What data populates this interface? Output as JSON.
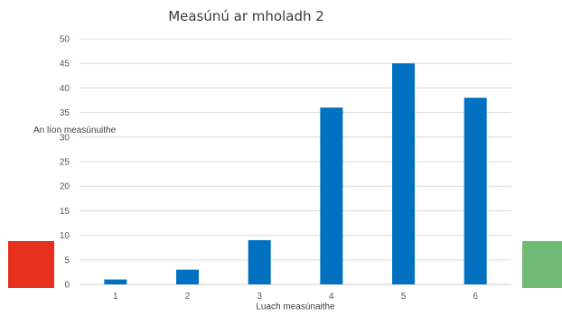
{
  "chart_data": {
    "type": "bar",
    "title": "Measúnú ar mholadh 2",
    "ylabel": "An líon measúnuithe",
    "xlabel": "Luach measúnaithe",
    "categories": [
      "1",
      "2",
      "3",
      "4",
      "5",
      "6"
    ],
    "values": [
      1,
      3,
      9,
      36,
      45,
      38
    ],
    "ylim": [
      0,
      50
    ],
    "yticks": [
      0,
      5,
      10,
      15,
      20,
      25,
      30,
      35,
      40,
      45,
      50
    ],
    "grid": true,
    "bar_color": "#0070c0"
  },
  "swatches": {
    "left_color": "#e8301e",
    "right_color": "#6fbb74"
  }
}
